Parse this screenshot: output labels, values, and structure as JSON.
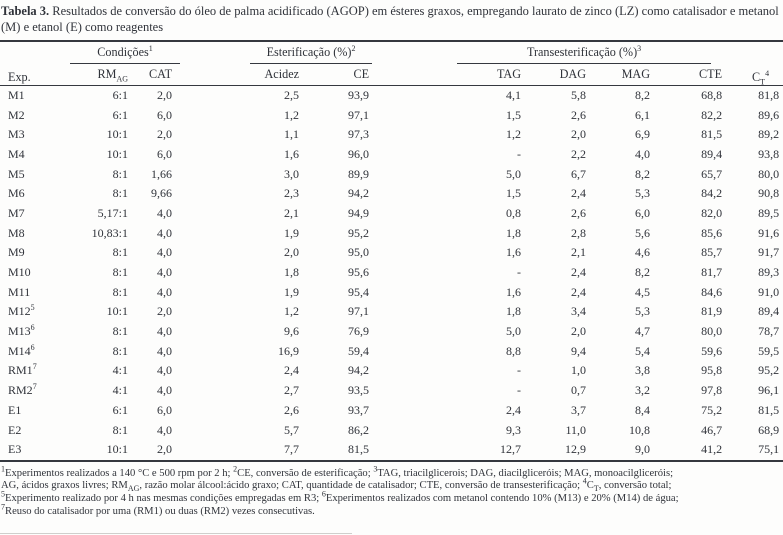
{
  "title": {
    "label": "Tabela 3.",
    "text": " Resultados de conversão do óleo de palma acidificado (AGOP) em ésteres graxos, empregando laurato de zinco (LZ) como catalisador e metanol (M) e etanol (E) como reagentes"
  },
  "table": {
    "corner_header": "Exp.",
    "groups": [
      {
        "rich": [
          {
            "t": "Condições"
          },
          {
            "sup": "1"
          }
        ]
      },
      {
        "rich": [
          {
            "t": "Esterificação (%)"
          },
          {
            "sup": "2"
          }
        ]
      },
      {
        "rich": [
          {
            "t": "Transesterificação (%)"
          },
          {
            "sup": "3"
          }
        ]
      }
    ],
    "ct_header": [
      {
        "t": "C"
      },
      {
        "sub": "T"
      },
      {
        "sup": "4"
      }
    ],
    "subheaders": [
      [
        {
          "t": "RM"
        },
        {
          "sub": "AG"
        }
      ],
      [
        {
          "t": "CAT"
        }
      ],
      [
        {
          "t": "Acidez"
        }
      ],
      [
        {
          "t": "CE"
        }
      ],
      [
        {
          "t": "TAG"
        }
      ],
      [
        {
          "t": "DAG"
        }
      ],
      [
        {
          "t": "MAG"
        }
      ],
      [
        {
          "t": "CTE"
        }
      ]
    ],
    "rows": [
      [
        "M1",
        "6:1",
        "2,0",
        "2,5",
        "93,9",
        "4,1",
        "5,8",
        "8,2",
        "68,8",
        "81,8"
      ],
      [
        "M2",
        "6:1",
        "6,0",
        "1,2",
        "97,1",
        "1,5",
        "2,6",
        "6,1",
        "82,2",
        "89,6"
      ],
      [
        "M3",
        "10:1",
        "2,0",
        "1,1",
        "97,3",
        "1,2",
        "2,0",
        "6,9",
        "81,5",
        "89,2"
      ],
      [
        "M4",
        "10:1",
        "6,0",
        "1,6",
        "96,0",
        "-",
        "2,2",
        "4,0",
        "89,4",
        "93,8"
      ],
      [
        "M5",
        "8:1",
        "1,66",
        "3,0",
        "89,9",
        "5,0",
        "6,7",
        "8,2",
        "65,7",
        "80,0"
      ],
      [
        "M6",
        "8:1",
        "9,66",
        "2,3",
        "94,2",
        "1,5",
        "2,4",
        "5,3",
        "84,2",
        "90,8"
      ],
      [
        "M7",
        "5,17:1",
        "4,0",
        "2,1",
        "94,9",
        "0,8",
        "2,6",
        "6,0",
        "82,0",
        "89,5"
      ],
      [
        "M8",
        "10,83:1",
        "4,0",
        "1,9",
        "95,2",
        "1,8",
        "2,8",
        "5,6",
        "85,6",
        "91,6"
      ],
      [
        "M9",
        "8:1",
        "4,0",
        "2,0",
        "95,0",
        "1,6",
        "2,1",
        "4,6",
        "85,7",
        "91,7"
      ],
      [
        "M10",
        "8:1",
        "4,0",
        "1,8",
        "95,6",
        "-",
        "2,4",
        "8,2",
        "81,7",
        "89,3"
      ],
      [
        "M11",
        "8:1",
        "4,0",
        "1,9",
        "95,4",
        "1,6",
        "2,4",
        "4,5",
        "84,6",
        "91,0"
      ],
      [
        [
          {
            "t": "M12"
          },
          {
            "sup": "5"
          }
        ],
        "10:1",
        "2,0",
        "1,2",
        "97,1",
        "1,8",
        "3,4",
        "5,3",
        "81,9",
        "89,4"
      ],
      [
        [
          {
            "t": "M13"
          },
          {
            "sup": "6"
          }
        ],
        "8:1",
        "4,0",
        "9,6",
        "76,9",
        "5,0",
        "2,0",
        "4,7",
        "80,0",
        "78,7"
      ],
      [
        [
          {
            "t": "M14"
          },
          {
            "sup": "6"
          }
        ],
        "8:1",
        "4,0",
        "16,9",
        "59,4",
        "8,8",
        "9,4",
        "5,4",
        "59,6",
        "59,5"
      ],
      [
        [
          {
            "t": "RM1"
          },
          {
            "sup": "7"
          }
        ],
        "4:1",
        "4,0",
        "2,4",
        "94,2",
        "-",
        "1,0",
        "3,8",
        "95,8",
        "95,2"
      ],
      [
        [
          {
            "t": "RM2"
          },
          {
            "sup": "7"
          }
        ],
        "4:1",
        "4,0",
        "2,7",
        "93,5",
        "-",
        "0,7",
        "3,2",
        "97,8",
        "96,1"
      ],
      [
        "E1",
        "6:1",
        "6,0",
        "2,6",
        "93,7",
        "2,4",
        "3,7",
        "8,4",
        "75,2",
        "81,5"
      ],
      [
        "E2",
        "8:1",
        "4,0",
        "5,7",
        "86,2",
        "9,3",
        "11,0",
        "10,8",
        "46,7",
        "68,9"
      ],
      [
        "E3",
        "10:1",
        "2,0",
        "7,7",
        "81,5",
        "12,7",
        "12,9",
        "9,0",
        "41,2",
        "75,1"
      ]
    ]
  },
  "footnotes": [
    [
      {
        "sup": "1"
      },
      {
        "t": "Experimentos realizados a 140 °C e 500 rpm por 2 h; "
      },
      {
        "sup": "2"
      },
      {
        "t": "CE, conversão de esterificação; "
      },
      {
        "sup": "3"
      },
      {
        "t": "TAG, triacilglicerois; DAG, diacilgliceróis; MAG, monoacilgliceróis;"
      }
    ],
    [
      {
        "t": "AG, ácidos graxos livres; RM"
      },
      {
        "sub": "AG"
      },
      {
        "t": ", razão molar álcool:ácido graxo; CAT, quantidade de catalisador; CTE, conversão de transesterificação; "
      },
      {
        "sup": "4"
      },
      {
        "t": "C"
      },
      {
        "sub": "T"
      },
      {
        "t": ", conversão total;"
      }
    ],
    [
      {
        "sup": "5"
      },
      {
        "t": "Experimento realizado por 4 h nas mesmas condições empregadas em R3; "
      },
      {
        "sup": "6"
      },
      {
        "t": "Experimentos realizados com metanol contendo 10% (M13) e 20% (M14) de água;"
      }
    ],
    [
      {
        "sup": "7"
      },
      {
        "t": "Reuso do catalisador por uma (RM1) ou duas (RM2) vezes consecutivas."
      }
    ]
  ]
}
